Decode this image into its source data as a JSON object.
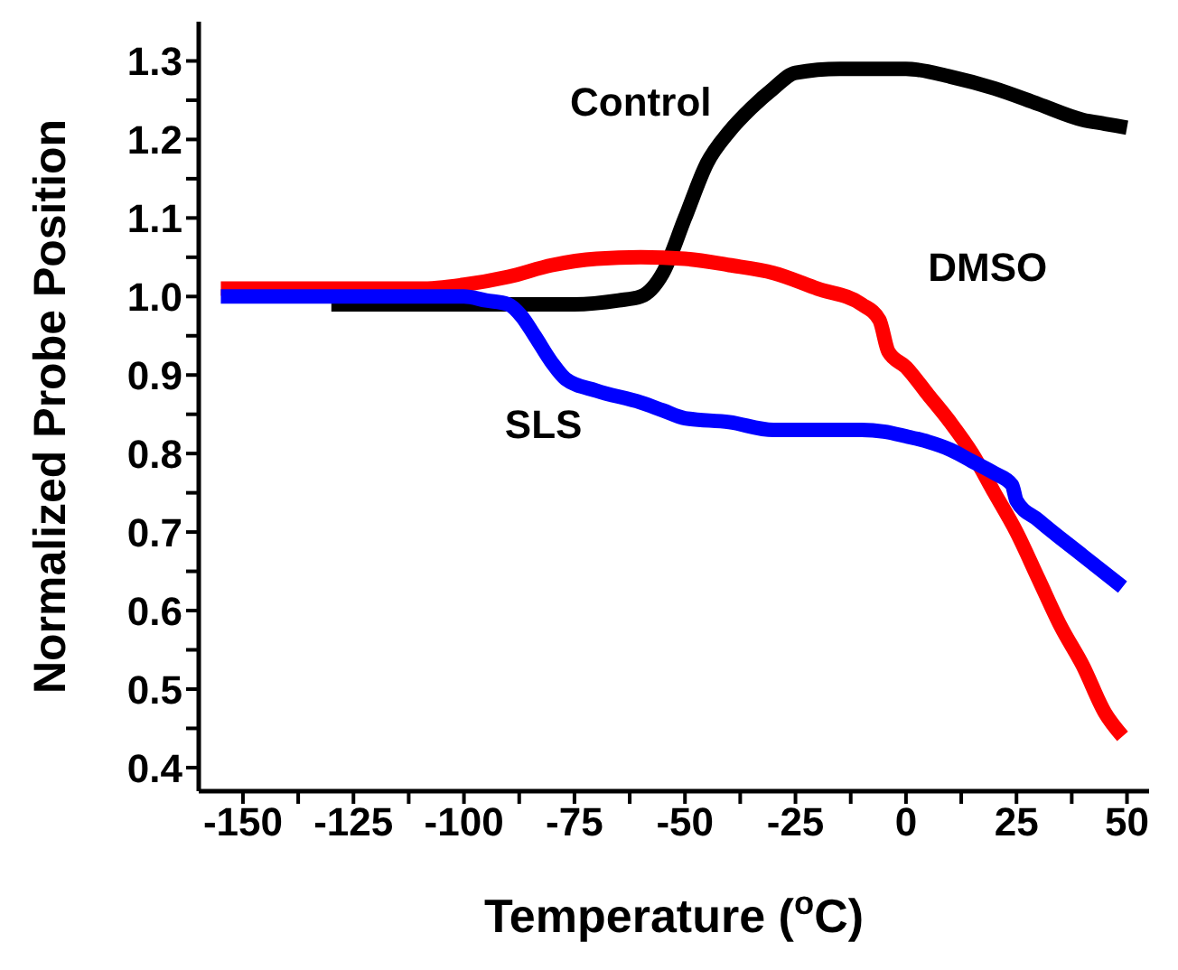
{
  "chart_data": {
    "type": "line",
    "xlabel": "Temperature ($^{o}$C)",
    "ylabel": "Normalized Probe Position",
    "xlim": [
      -160,
      55
    ],
    "ylim": [
      0.37,
      1.35
    ],
    "xticks": [
      -150,
      {
        "value": -137.5,
        "label": null
      },
      -125,
      {
        "value": -112.5,
        "label": null
      },
      -100,
      {
        "value": -87.5,
        "label": null
      },
      -75,
      {
        "value": -62.5,
        "label": null
      },
      -50,
      {
        "value": -37.5,
        "label": null
      },
      -25,
      {
        "value": -12.5,
        "label": null
      },
      0,
      {
        "value": 12.5,
        "label": null
      },
      25,
      {
        "value": 37.5,
        "label": null
      },
      50
    ],
    "yticks": [
      0.4,
      {
        "value": 0.45,
        "label": null
      },
      0.5,
      {
        "value": 0.55,
        "label": null
      },
      0.6,
      {
        "value": 0.65,
        "label": null
      },
      0.7,
      {
        "value": 0.75,
        "label": null
      },
      0.8,
      {
        "value": 0.85,
        "label": null
      },
      0.9,
      {
        "value": 0.95,
        "label": null
      },
      {
        "value": 1,
        "label": "1.0"
      },
      {
        "value": 1.05,
        "label": null
      },
      1.1,
      {
        "value": 1.15,
        "label": null
      },
      1.2,
      {
        "value": 1.25,
        "label": null
      },
      1.3
    ],
    "marker": "none",
    "line_style": "solid",
    "series": [
      {
        "name": "Control",
        "color": "#000000",
        "x": [
          -130,
          -100,
          -75,
          -65,
          -60,
          -55,
          -50,
          -45,
          -40,
          -35,
          -30,
          -25,
          -15,
          0,
          10,
          20,
          30,
          40,
          45,
          50
        ],
        "values": [
          0.99,
          0.99,
          0.99,
          0.995,
          1.0,
          1.03,
          1.1,
          1.17,
          1.21,
          1.24,
          1.265,
          1.285,
          1.29,
          1.29,
          1.28,
          1.265,
          1.245,
          1.225,
          1.22,
          1.215
        ]
      },
      {
        "name": "DMSO",
        "color": "#ff0000",
        "x": [
          -155,
          -130,
          -110,
          -100,
          -90,
          -80,
          -70,
          -60,
          -50,
          -40,
          -30,
          -20,
          -10,
          -6,
          -4,
          0,
          5,
          10,
          15,
          20,
          25,
          30,
          35,
          40,
          45,
          49
        ],
        "values": [
          1.01,
          1.01,
          1.01,
          1.015,
          1.025,
          1.04,
          1.048,
          1.05,
          1.048,
          1.04,
          1.03,
          1.01,
          0.99,
          0.97,
          0.93,
          0.91,
          0.875,
          0.84,
          0.8,
          0.75,
          0.7,
          0.64,
          0.58,
          0.53,
          0.47,
          0.44
        ]
      },
      {
        "name": "SLS",
        "color": "#0000ff",
        "x": [
          -155,
          -120,
          -100,
          -95,
          -90,
          -87,
          -84,
          -80,
          -77,
          -70,
          -60,
          -55,
          -50,
          -40,
          -30,
          -20,
          -10,
          -5,
          0,
          5,
          10,
          15,
          20,
          24,
          25,
          30,
          40,
          49
        ],
        "values": [
          1.0,
          1.0,
          1.0,
          0.995,
          0.99,
          0.975,
          0.95,
          0.915,
          0.895,
          0.88,
          0.865,
          0.855,
          0.845,
          0.84,
          0.83,
          0.83,
          0.83,
          0.828,
          0.822,
          0.815,
          0.805,
          0.79,
          0.775,
          0.76,
          0.74,
          0.715,
          0.67,
          0.63
        ]
      }
    ]
  }
}
